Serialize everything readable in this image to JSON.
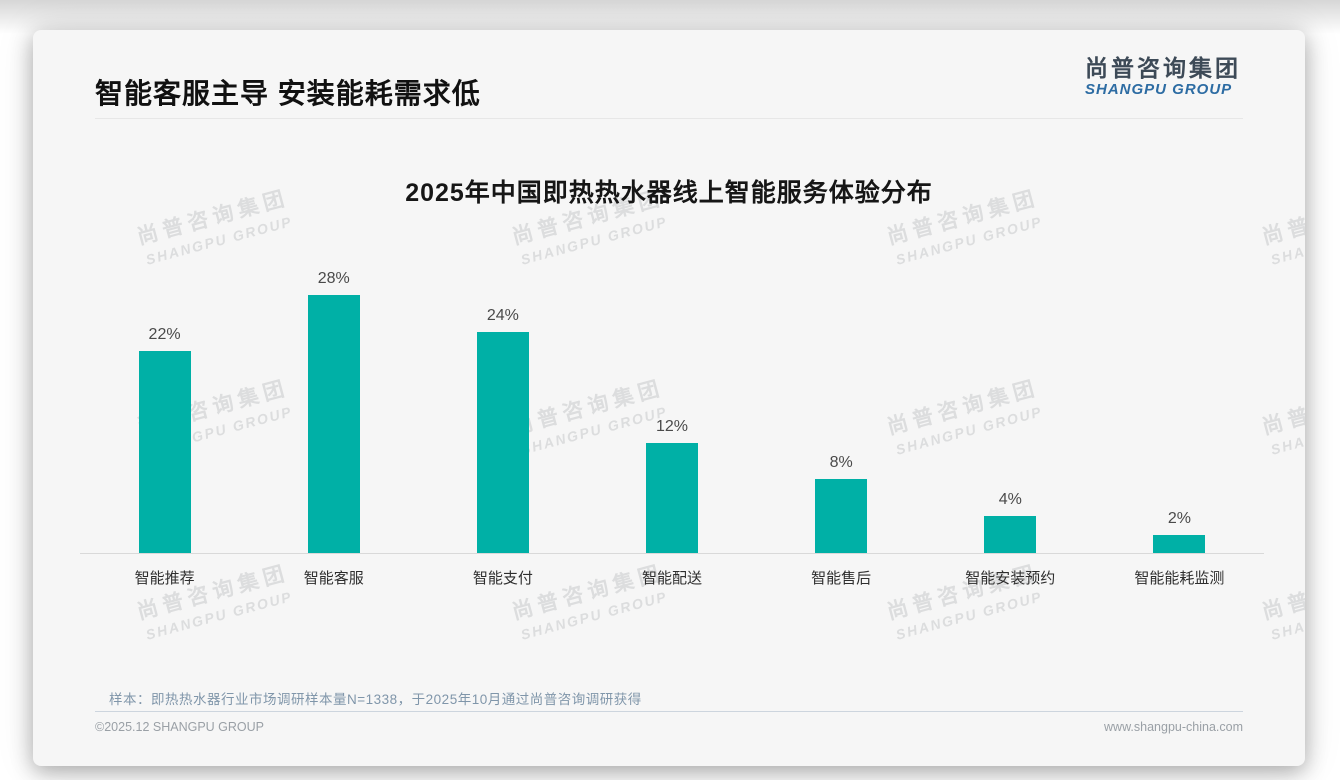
{
  "header": {
    "title": "智能客服主导 安装能耗需求低"
  },
  "logo": {
    "chinese": "尚普咨询集团",
    "english": "SHANGPU GROUP",
    "english_color": "#2d6ca3",
    "chinese_color": "#3d4a57"
  },
  "watermark": {
    "line1": "尚普咨询集团",
    "line2": "SHANGPU GROUP"
  },
  "chart_data": {
    "type": "bar",
    "title": "2025年中国即热热水器线上智能服务体验分布",
    "categories": [
      "智能推荐",
      "智能客服",
      "智能支付",
      "智能配送",
      "智能售后",
      "智能安装预约",
      "智能能耗监测"
    ],
    "values": [
      22,
      28,
      24,
      12,
      8,
      4,
      2
    ],
    "value_labels": [
      "22%",
      "28%",
      "24%",
      "12%",
      "8%",
      "4%",
      "2%"
    ],
    "unit": "%",
    "bar_color": "#00b0a6",
    "ylim": [
      0,
      30
    ],
    "grid": false,
    "legend": false,
    "xlabel": "",
    "ylabel": ""
  },
  "note": {
    "text": "样本：即热热水器行业市场调研样本量N=1338，于2025年10月通过尚普咨询调研获得"
  },
  "footer": {
    "copyright": "©2025.12 SHANGPU GROUP",
    "website": "www.shangpu-china.com"
  }
}
